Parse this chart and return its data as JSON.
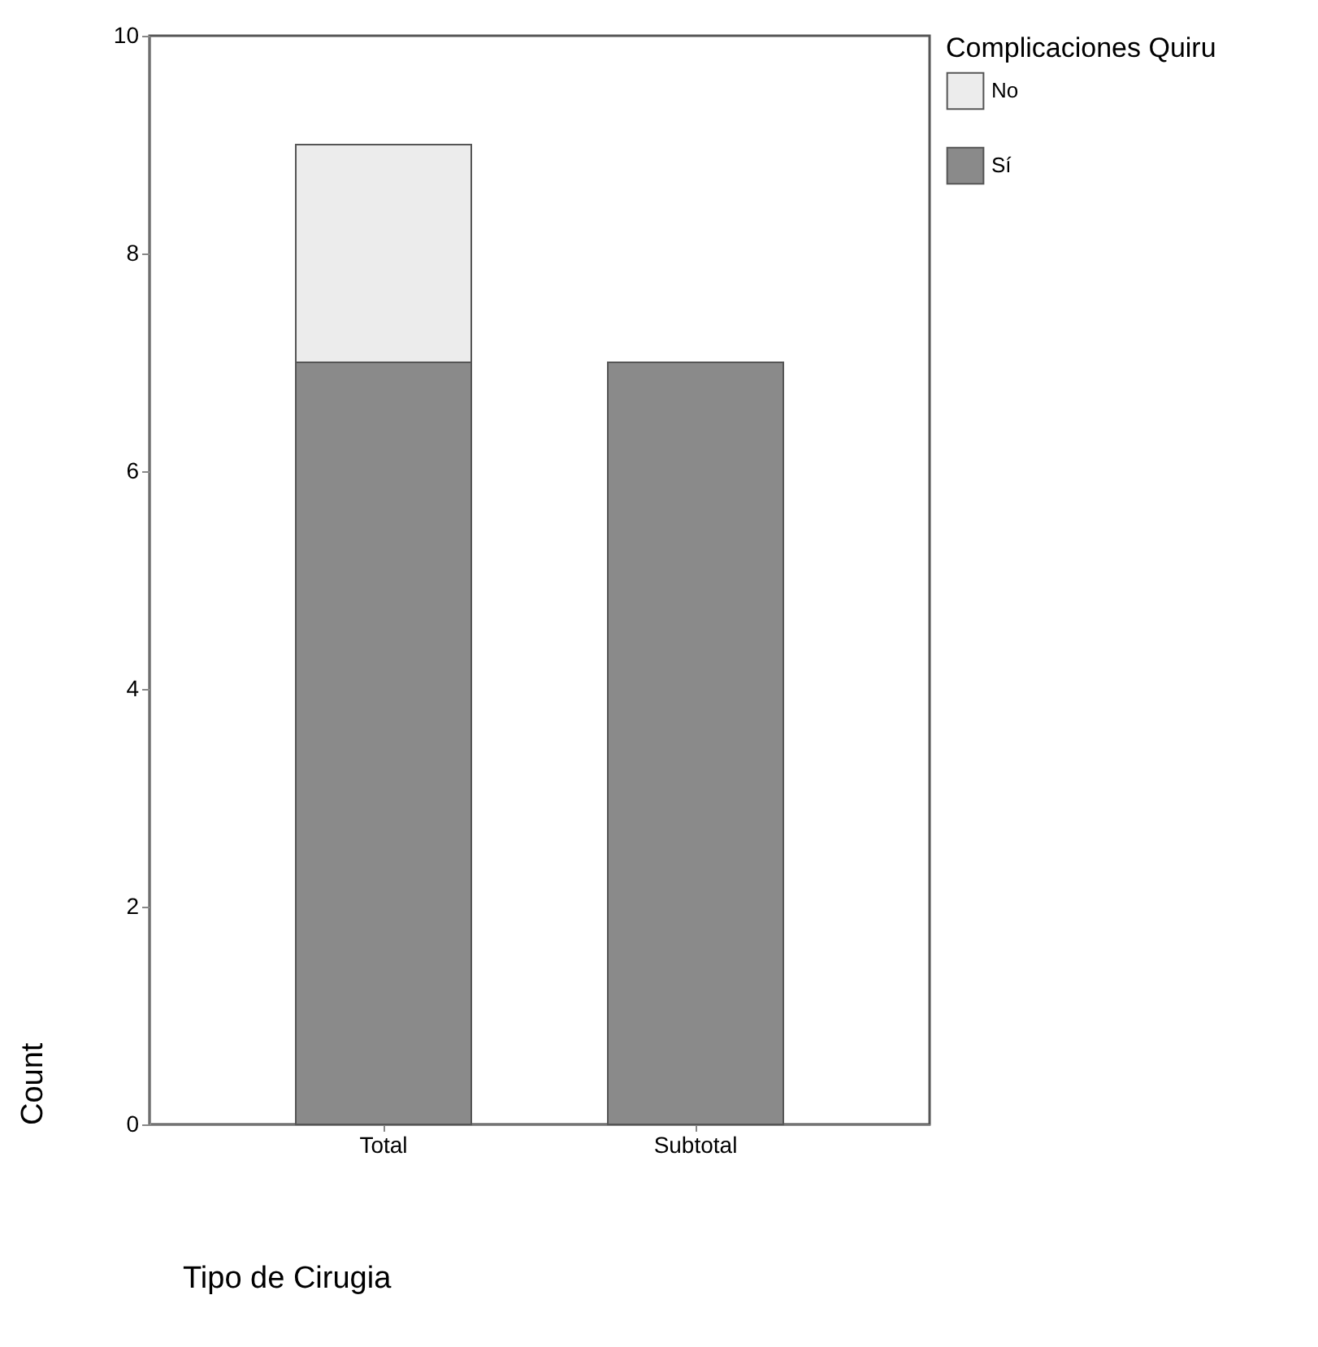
{
  "chart_data": {
    "type": "bar",
    "stacked": true,
    "xlabel": "Tipo de Cirugia",
    "ylabel": "Count",
    "legend_title": "Complicaciones Quiru",
    "categories": [
      "Total",
      "Subtotal"
    ],
    "series": [
      {
        "name": "Sí",
        "color": "#8a8a8a",
        "values": [
          7,
          7
        ]
      },
      {
        "name": "No",
        "color": "#ececec",
        "values": [
          2,
          0
        ]
      }
    ],
    "ylim": [
      0,
      10
    ],
    "yticks": [
      0,
      2,
      4,
      6,
      8,
      10
    ],
    "grid": false,
    "legend": "right"
  }
}
